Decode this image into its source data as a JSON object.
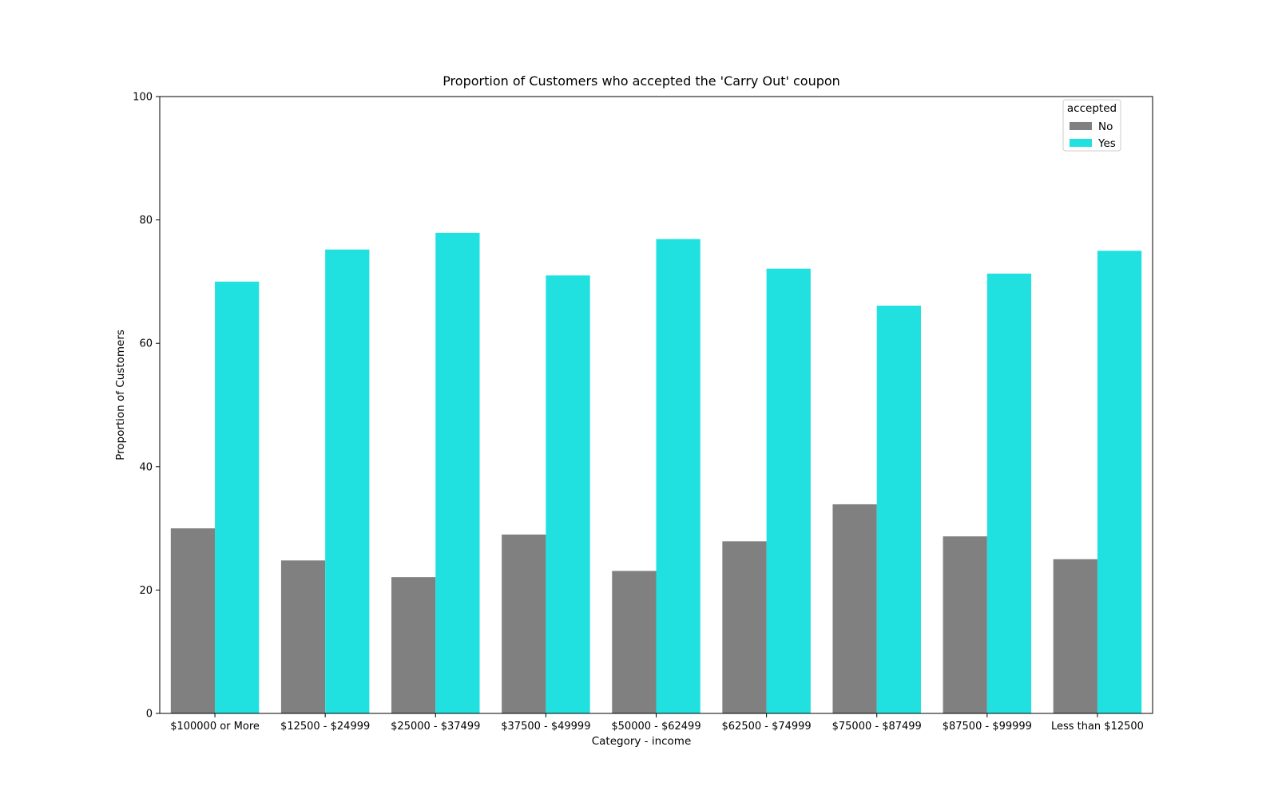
{
  "chart_data": {
    "type": "bar",
    "title": "Proportion of Customers who accepted the 'Carry Out' coupon",
    "xlabel": "Category - income",
    "ylabel": "Proportion of Customers",
    "ylim": [
      0,
      100
    ],
    "yticks": [
      0,
      20,
      40,
      60,
      80,
      100
    ],
    "categories": [
      "$100000 or More",
      "$12500 - $24999",
      "$25000 - $37499",
      "$37500 - $49999",
      "$50000 - $62499",
      "$62500 - $74999",
      "$75000 - $87499",
      "$87500 - $99999",
      "Less than $12500"
    ],
    "series": [
      {
        "name": "No",
        "color": "#808080",
        "values": [
          30.0,
          24.8,
          22.1,
          29.0,
          23.1,
          27.9,
          33.9,
          28.7,
          25.0
        ]
      },
      {
        "name": "Yes",
        "color": "#21e0e0",
        "values": [
          70.0,
          75.2,
          77.9,
          71.0,
          76.9,
          72.1,
          66.1,
          71.3,
          75.0
        ]
      }
    ],
    "legend": {
      "title": "accepted",
      "placement": "top-right"
    },
    "grid": false
  }
}
